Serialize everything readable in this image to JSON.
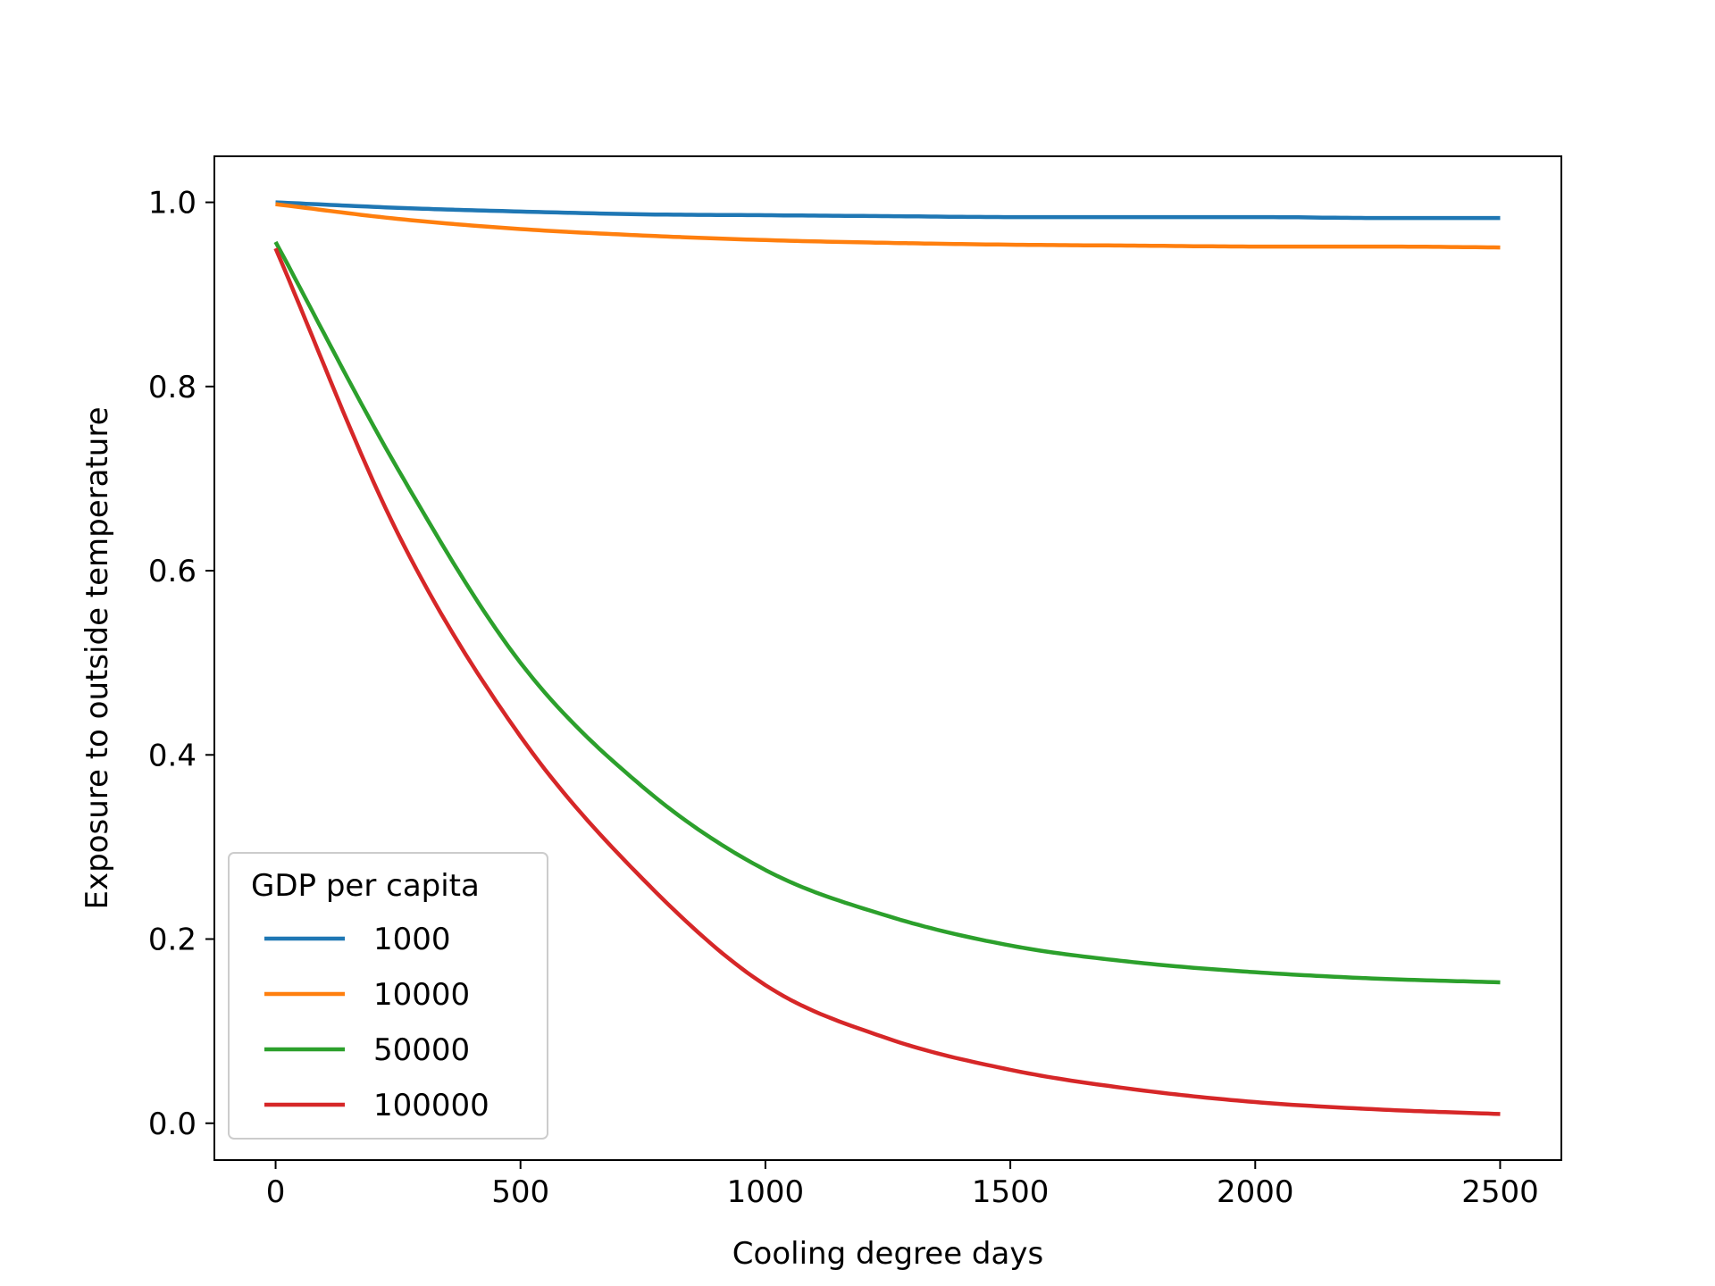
{
  "chart_data": {
    "type": "line",
    "title": "",
    "xlabel": "Cooling degree days",
    "ylabel": "Exposure to outside temperature",
    "xlim": [
      -125,
      2625
    ],
    "ylim": [
      -0.04,
      1.05
    ],
    "xticks": [
      0,
      500,
      1000,
      1500,
      2000,
      2500
    ],
    "xtick_labels": [
      "0",
      "500",
      "1000",
      "1500",
      "2000",
      "2500"
    ],
    "yticks": [
      0.0,
      0.2,
      0.4,
      0.6,
      0.8,
      1.0
    ],
    "ytick_labels": [
      "0.0",
      "0.2",
      "0.4",
      "0.6",
      "0.8",
      "1.0"
    ],
    "grid": false,
    "legend": {
      "title": "GDP per capita",
      "placement": "lower-left"
    },
    "x": [
      0,
      250,
      500,
      750,
      1000,
      1250,
      1500,
      1750,
      2000,
      2250,
      2500
    ],
    "series": [
      {
        "name": "1000",
        "color": "#1f77b4",
        "values": [
          1.0,
          0.994,
          0.99,
          0.987,
          0.986,
          0.985,
          0.984,
          0.984,
          0.984,
          0.983,
          0.983
        ]
      },
      {
        "name": "10000",
        "color": "#ff7f0e",
        "values": [
          0.998,
          0.982,
          0.971,
          0.964,
          0.959,
          0.956,
          0.954,
          0.953,
          0.952,
          0.952,
          0.951
        ]
      },
      {
        "name": "50000",
        "color": "#2ca02c",
        "values": [
          0.957,
          0.71,
          0.5,
          0.365,
          0.275,
          0.225,
          0.193,
          0.175,
          0.164,
          0.157,
          0.153
        ]
      },
      {
        "name": "100000",
        "color": "#d62728",
        "values": [
          0.95,
          0.64,
          0.42,
          0.265,
          0.15,
          0.092,
          0.058,
          0.037,
          0.023,
          0.015,
          0.01
        ]
      }
    ]
  }
}
